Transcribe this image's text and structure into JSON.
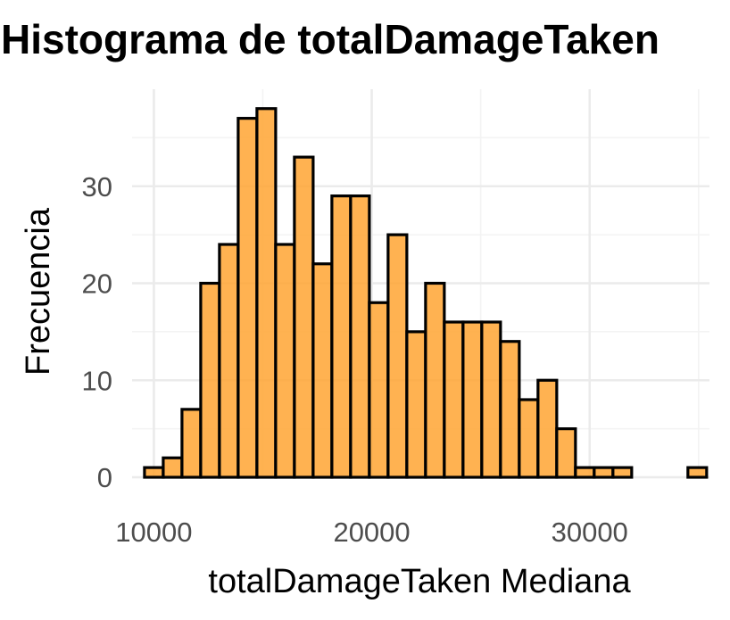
{
  "chart_data": {
    "type": "bar",
    "title": "Histograma de totalDamageTaken",
    "xlabel": "totalDamageTaken Mediana",
    "ylabel": "Frecuencia",
    "bin_width": 860,
    "bins_start": 9570,
    "x": [
      10000,
      10860,
      11720,
      12580,
      13440,
      14300,
      15160,
      16020,
      16880,
      17740,
      18600,
      19460,
      20320,
      21180,
      22040,
      22900,
      23760,
      24620,
      25480,
      26340,
      27200,
      28060,
      28920,
      29780,
      30640,
      31500,
      32360,
      33220,
      34080,
      34940
    ],
    "values": [
      1,
      2,
      7,
      20,
      24,
      37,
      38,
      24,
      33,
      22,
      29,
      29,
      18,
      25,
      15,
      20,
      16,
      16,
      16,
      14,
      8,
      10,
      5,
      1,
      1,
      1,
      0,
      0,
      0,
      1
    ],
    "xlim": [
      9000,
      35500
    ],
    "ylim": [
      0,
      40
    ],
    "x_ticks": [
      10000,
      20000,
      30000
    ],
    "x_tick_labels": [
      "10000",
      "20000",
      "30000"
    ],
    "y_ticks": [
      0,
      10,
      20,
      30
    ],
    "y_tick_labels": [
      "0",
      "10",
      "20",
      "30"
    ],
    "bar_fill": "#ffa533",
    "bar_stroke": "#000000",
    "grid": true,
    "theme": "minimal"
  }
}
